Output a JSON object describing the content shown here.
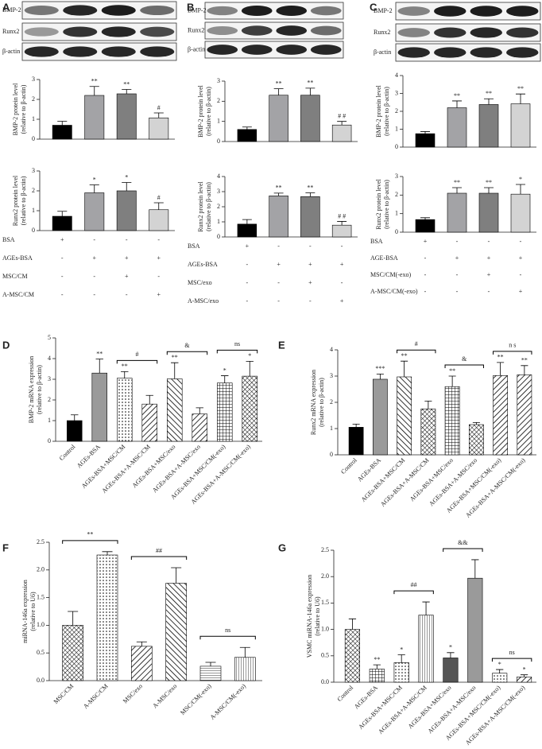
{
  "chart_data": [
    {
      "type": "bar",
      "panel": "A",
      "blot_labels": [
        "BMP-2",
        "Runx2",
        "β-actin"
      ],
      "ylabel": [
        "BMP-2 protein level",
        "(relative to β-actin)"
      ],
      "values": [
        0.7,
        2.2,
        2.28,
        1.07
      ],
      "errors": [
        0.2,
        0.45,
        0.22,
        0.25
      ],
      "annotations": [
        null,
        "**",
        "**",
        "#"
      ],
      "colors": [
        "#000000",
        "#a3a3a6",
        "#7f7f7f",
        "#d3d3d3"
      ],
      "ylim": [
        0,
        3
      ],
      "yticks": [
        0,
        1,
        2,
        3
      ]
    },
    {
      "type": "bar",
      "ylabel": [
        "Runx2 protein level",
        "(relative to β-actin)"
      ],
      "values": [
        0.72,
        1.9,
        2.0,
        1.05
      ],
      "errors": [
        0.25,
        0.4,
        0.42,
        0.35
      ],
      "annotations": [
        null,
        "*",
        "*",
        "#"
      ],
      "colors": [
        "#000000",
        "#a3a3a6",
        "#7f7f7f",
        "#d3d3d3"
      ],
      "ylim": [
        0,
        3
      ],
      "yticks": [
        0,
        1,
        2,
        3
      ],
      "conditions": [
        {
          "label": "BSA",
          "marks": [
            "+",
            "-",
            "-",
            "-"
          ]
        },
        {
          "label": "AGEs-BSA",
          "marks": [
            "-",
            "+",
            "+",
            "+"
          ]
        },
        {
          "label": "MSC/CM",
          "marks": [
            "-",
            "-",
            "+",
            "-"
          ]
        },
        {
          "label": "A-MSC/CM",
          "marks": [
            "-",
            "-",
            "-",
            "+"
          ]
        }
      ]
    },
    {
      "type": "bar",
      "panel": "B",
      "blot_labels": [
        "BMP-2",
        "Runx2",
        "β-actin"
      ],
      "ylabel": [
        "BMP-2 protein level",
        "(relative to β-actin)"
      ],
      "values": [
        0.6,
        2.3,
        2.3,
        0.82
      ],
      "errors": [
        0.12,
        0.32,
        0.35,
        0.18
      ],
      "annotations": [
        null,
        "**",
        "**",
        "# #"
      ],
      "colors": [
        "#000000",
        "#a3a3a6",
        "#7f7f7f",
        "#d3d3d3"
      ],
      "ylim": [
        0,
        3
      ],
      "yticks": [
        0,
        1,
        2,
        3
      ]
    },
    {
      "type": "bar",
      "ylabel": [
        "Runx2 protein level",
        "(relative to β-actin)"
      ],
      "values": [
        0.85,
        2.72,
        2.67,
        0.78
      ],
      "errors": [
        0.3,
        0.18,
        0.25,
        0.25
      ],
      "annotations": [
        null,
        "**",
        "**",
        "# #"
      ],
      "colors": [
        "#000000",
        "#a3a3a6",
        "#7f7f7f",
        "#d3d3d3"
      ],
      "ylim": [
        0,
        4
      ],
      "yticks": [
        0,
        1,
        2,
        3,
        4
      ],
      "conditions": [
        {
          "label": "BSA",
          "marks": [
            "+",
            "-",
            "-",
            "-"
          ]
        },
        {
          "label": "AGEs-BSA",
          "marks": [
            "-",
            "+",
            "+",
            "+"
          ]
        },
        {
          "label": "MSC/exo",
          "marks": [
            "-",
            "-",
            "+",
            "-"
          ]
        },
        {
          "label": "A-MSC/exo",
          "marks": [
            "-",
            "-",
            "-",
            "+"
          ]
        }
      ]
    },
    {
      "type": "bar",
      "panel": "C",
      "blot_labels": [
        "BMP-2",
        "Runx2",
        "β-actin"
      ],
      "ylabel": [
        "BMP-2 protein level",
        "(relative to β-actin)"
      ],
      "values": [
        0.75,
        2.2,
        2.38,
        2.42
      ],
      "errors": [
        0.12,
        0.38,
        0.32,
        0.55
      ],
      "annotations": [
        null,
        "**",
        "**",
        "**"
      ],
      "colors": [
        "#000000",
        "#a3a3a6",
        "#7f7f7f",
        "#d3d3d3"
      ],
      "ylim": [
        0,
        4
      ],
      "yticks": [
        0,
        1,
        2,
        3,
        4
      ]
    },
    {
      "type": "bar",
      "ylabel": [
        "Runx2 protein level",
        "(relative to β-actin)"
      ],
      "values": [
        0.68,
        2.1,
        2.1,
        2.05
      ],
      "errors": [
        0.1,
        0.3,
        0.3,
        0.52
      ],
      "annotations": [
        null,
        "**",
        "**",
        "*"
      ],
      "colors": [
        "#000000",
        "#a3a3a6",
        "#7f7f7f",
        "#d3d3d3"
      ],
      "ylim": [
        0,
        3
      ],
      "yticks": [
        0,
        1,
        2,
        3
      ],
      "conditions": [
        {
          "label": "BSA",
          "marks": [
            "+",
            "-",
            "-",
            "-"
          ]
        },
        {
          "label": "AGE-BSA",
          "marks": [
            "-",
            "+",
            "+",
            "+"
          ]
        },
        {
          "label": "MSC/CM(-exo)",
          "marks": [
            "-",
            "-",
            "+",
            "-"
          ]
        },
        {
          "label": "A-MSC/CM(-exo)",
          "marks": [
            "-",
            "-",
            "-",
            "+"
          ]
        }
      ]
    },
    {
      "type": "bar",
      "panel": "D",
      "ylabel": [
        "BMP-2 mRNA expression",
        "(relative to β-actin)"
      ],
      "categories": [
        "Control",
        "AGEs-BSA",
        "AGEs-BSA+MSC/CM",
        "AGEs-BSA+A-MSC/CM",
        "AGEs-BSA+MSC/exo",
        "AGEs-BSA+A-MSC/exo",
        "AGEs-BSA+MSC/CM(-exo)",
        "AGEs-BSA+A-MSC/CM(-exo)"
      ],
      "values": [
        1.0,
        3.3,
        3.05,
        1.8,
        3.02,
        1.32,
        2.82,
        3.15
      ],
      "errors": [
        0.28,
        0.68,
        0.32,
        0.42,
        0.78,
        0.3,
        0.35,
        0.72
      ],
      "annotations": [
        null,
        "**",
        "**",
        null,
        "**",
        null,
        "*",
        "*"
      ],
      "brackets": [
        "#",
        "&",
        "ns"
      ],
      "colors": [
        "#000000",
        "#9a9a9a",
        "#ffffff",
        "#ffffff",
        "#ffffff",
        "#ffffff",
        "#ffffff",
        "#ffffff"
      ],
      "patterns": [
        "solid",
        "solid",
        "dots",
        "hatch",
        "backhatch",
        "hatch",
        "grid",
        "cross"
      ],
      "ylim": [
        0,
        5
      ],
      "yticks": [
        0,
        1,
        2,
        3,
        4,
        5
      ]
    },
    {
      "type": "bar",
      "panel": "E",
      "ylabel": [
        "Runx2 mRNA expression",
        "(relative to β-actin)"
      ],
      "categories": [
        "Control",
        "AGEs-BSA",
        "AGEs-BSA+MSC/CM",
        "AGEs-BSA+A-MSC/CM",
        "AGEs-BSA+MSC/exo",
        "AGEs-BSA+A-MSC/exo",
        "AGEs-BSA+MSC/CM(-exo)",
        "AGEs-BSA+A-MSC/CM(-exo)"
      ],
      "values": [
        1.05,
        2.88,
        2.97,
        1.75,
        2.6,
        1.15,
        3.02,
        3.05
      ],
      "errors": [
        0.12,
        0.2,
        0.6,
        0.3,
        0.4,
        0.08,
        0.5,
        0.35
      ],
      "annotations": [
        null,
        "***",
        "**",
        null,
        "**",
        null,
        "**",
        "**"
      ],
      "brackets": [
        "#",
        "&",
        "n s"
      ],
      "colors": [
        "#000000",
        "#9a9a9a",
        "#ffffff",
        "#ffffff",
        "#ffffff",
        "#ffffff",
        "#ffffff",
        "#ffffff"
      ],
      "patterns": [
        "solid",
        "solid",
        "backhatch",
        "cross",
        "grid",
        "cross",
        "hatch",
        "hatch"
      ],
      "ylim": [
        0,
        4
      ],
      "yticks": [
        0,
        1,
        2,
        3,
        4
      ]
    },
    {
      "type": "bar",
      "panel": "F",
      "ylabel": [
        "miRNA-146a expression",
        "(relative to U6)"
      ],
      "categories": [
        "MSC/CM",
        "A-MSC/CM",
        "MSC/exo",
        "A-MSC/exo",
        "MSC/CM(-exo)",
        "A-MSC/CM(-exo)"
      ],
      "values": [
        1.0,
        2.27,
        0.62,
        1.76,
        0.26,
        0.42
      ],
      "errors": [
        0.25,
        0.06,
        0.08,
        0.28,
        0.07,
        0.18
      ],
      "brackets": [
        "**",
        "##",
        "ns"
      ],
      "colors": [
        "#ffffff",
        "#ffffff",
        "#ffffff",
        "#ffffff",
        "#ffffff",
        "#ffffff"
      ],
      "patterns": [
        "cross",
        "dots",
        "hatch",
        "backhatch",
        "hlines",
        "vlines"
      ],
      "ylim": [
        0,
        2.5
      ],
      "yticks": [
        {
          "value": 0,
          "label": "0.0"
        },
        0.5,
        {
          "value": 1,
          "label": "1.0"
        },
        1.5,
        {
          "value": 2,
          "label": "2.0"
        },
        2.5
      ]
    },
    {
      "type": "bar",
      "panel": "G",
      "ylabel": [
        "VSMC miRNA-146a expression",
        "(relative to U6)"
      ],
      "categories": [
        "Control",
        "AGEs-BSA",
        "AGEs-BSA+MSC/CM",
        "AGEs-BSA+A-MSC/CM",
        "AGEs-BSA+MSC/exo",
        "AGEs-BSA+A-MSC/exo",
        "AGEs-BSA+MSC/CM(-exo)",
        "AGEs-BSA+A-MSC/CM(-exo)"
      ],
      "values": [
        1.0,
        0.25,
        0.37,
        1.27,
        0.46,
        1.97,
        0.17,
        0.1
      ],
      "errors": [
        0.2,
        0.08,
        0.15,
        0.25,
        0.1,
        0.35,
        0.07,
        0.04
      ],
      "annotations": [
        null,
        "**",
        "*",
        null,
        "*",
        null,
        "*",
        "*"
      ],
      "brackets": [
        "##",
        "&&",
        "ns"
      ],
      "colors": [
        "#ffffff",
        "#ffffff",
        "#ffffff",
        "#ffffff",
        "#555555",
        "#9a9a9a",
        "#ffffff",
        "#ffffff"
      ],
      "patterns": [
        "cross",
        "grid",
        "dots",
        "vlines",
        "solid",
        "solid",
        "dots",
        "hatch"
      ],
      "ylim": [
        0,
        2.5
      ],
      "yticks": [
        {
          "value": 0,
          "label": "0.0"
        },
        0.5,
        {
          "value": 1,
          "label": "1.0"
        },
        1.5,
        {
          "value": 2,
          "label": "2.0"
        },
        2.5
      ]
    }
  ]
}
